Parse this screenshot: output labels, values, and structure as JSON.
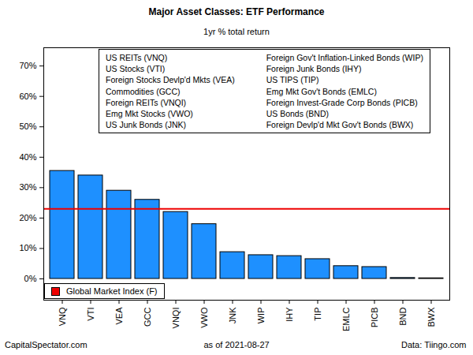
{
  "chart_data": {
    "type": "bar",
    "title": "Major Asset Classes: ETF Performance",
    "subtitle": "1yr % total return",
    "categories": [
      "VNQ",
      "VTI",
      "VEA",
      "GCC",
      "VNQI",
      "VWO",
      "JNK",
      "WIP",
      "IHY",
      "TIP",
      "EMLC",
      "PICB",
      "BND",
      "BWX"
    ],
    "values": [
      35.5,
      34,
      29,
      26,
      22,
      18,
      8.8,
      7.8,
      7.5,
      6.5,
      4.2,
      3.9,
      0.3,
      0.2
    ],
    "color": "#1e90ff",
    "ylim": [
      -7,
      76
    ],
    "yticks": [
      {
        "value": 0,
        "label": "0%"
      },
      {
        "value": 10,
        "label": "10%"
      },
      {
        "value": 20,
        "label": "20%"
      },
      {
        "value": 30,
        "label": "30%"
      },
      {
        "value": 40,
        "label": "40%"
      },
      {
        "value": 50,
        "label": "50%"
      },
      {
        "value": 60,
        "label": "60%"
      },
      {
        "value": 70,
        "label": "70%"
      }
    ],
    "grid": false,
    "legend": "bottom-left",
    "reference_lines": [
      {
        "name": "Global Market Index (F)",
        "value": 23,
        "color": "#ee0000"
      }
    ],
    "annotations": [
      "US REITs (VNQ)",
      "US Stocks (VTI)",
      "Foreign Stocks Devlp'd Mkts (VEA)",
      "Commodities (GCC)",
      "Foreign REITs (VNQI)",
      "Emg Mkt Stocks (VWO)",
      "US Junk Bonds (JNK)",
      "Foreign Gov't Inflation-Linked Bonds (WIP)",
      "Foreign Junk Bonds (IHY)",
      "US TIPS (TIP)",
      "Emg Mkt Gov't Bonds (EMLC)",
      "Foreign Invest-Grade Corp Bonds (PICB)",
      "US Bonds (BND)",
      "Foreign Devlp'd Mkt Gov't Bonds (BWX)"
    ],
    "caption": [
      "CapitalSpectator.com",
      "as of 2021-08-27",
      "Data: Tiingo.com"
    ]
  }
}
